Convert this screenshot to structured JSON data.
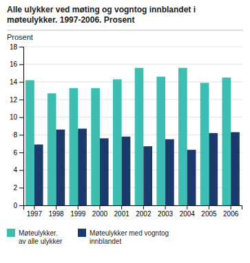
{
  "chart_data": {
    "type": "bar",
    "title": "Alle ulykker ved møting og vogntog innblandet i\nmøteulykker. 1997-2006. Prosent",
    "y_label": "Prosent",
    "categories": [
      "1997",
      "1998",
      "1999",
      "2000",
      "2001",
      "2002",
      "2003",
      "2004",
      "2005",
      "2006"
    ],
    "series": [
      {
        "name": "Møteulykker.\nav alle ulykker",
        "color": "#3CBFB0",
        "values": [
          14.2,
          12.7,
          13.3,
          13.3,
          14.3,
          15.6,
          14.6,
          15.6,
          13.9,
          14.5
        ]
      },
      {
        "name": "Møteulykker med vogntog\ninnblandet",
        "color": "#1A3A6B",
        "values": [
          6.9,
          8.6,
          8.7,
          7.6,
          7.8,
          6.7,
          7.5,
          6.3,
          8.2,
          8.3
        ]
      }
    ],
    "ylim": [
      0,
      18
    ],
    "yticks": [
      0,
      2,
      4,
      6,
      8,
      10,
      12,
      14,
      16,
      18
    ],
    "grid": true,
    "legend": "bottom"
  }
}
